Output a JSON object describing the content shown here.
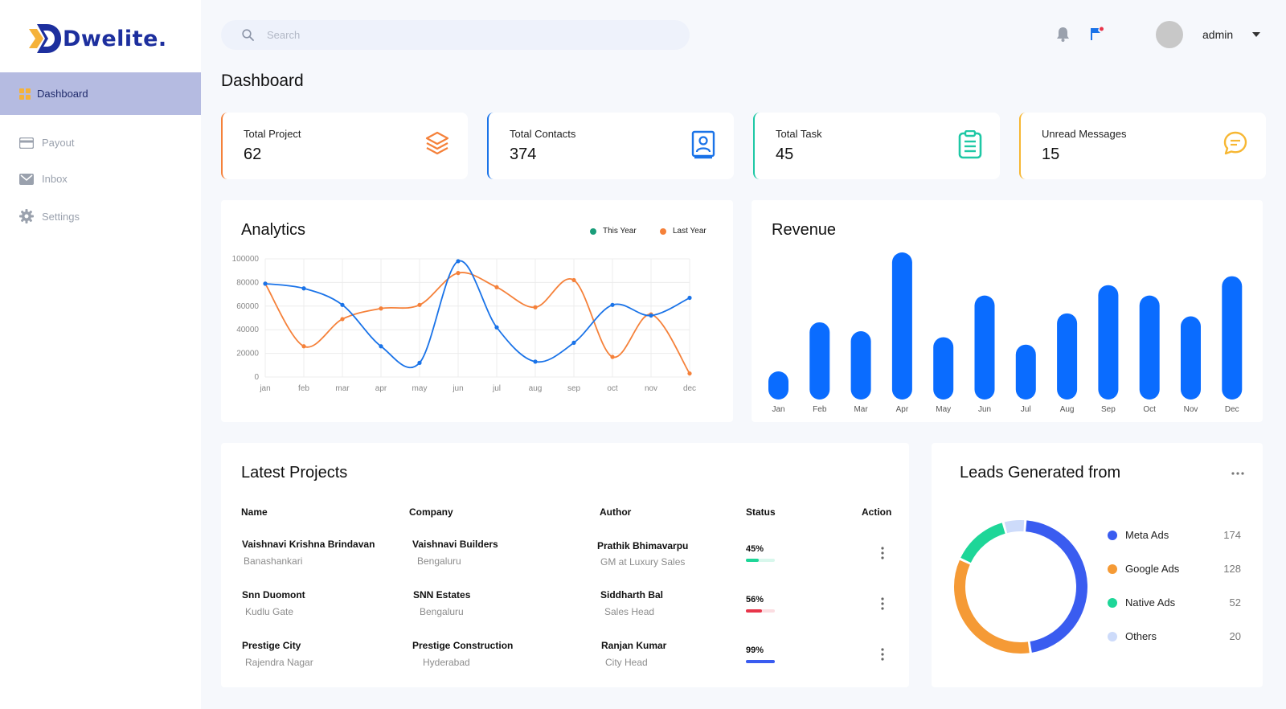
{
  "brand": {
    "name": "Dwelite."
  },
  "sidebar": {
    "active": {
      "label": "Dashboard",
      "icon": "dashboard-icon"
    },
    "items": [
      {
        "label": "Payout",
        "icon": "card-icon"
      },
      {
        "label": "Inbox",
        "icon": "mail-icon"
      },
      {
        "label": "Settings",
        "icon": "gear-icon"
      }
    ]
  },
  "header": {
    "search_placeholder": "Search",
    "user": "admin"
  },
  "page_title": "Dashboard",
  "stats": [
    {
      "title": "Total Project",
      "value": "62",
      "icon": "layers-icon",
      "color": "#f5813a"
    },
    {
      "title": "Total Contacts",
      "value": "374",
      "icon": "contact-book-icon",
      "color": "#1a73e8"
    },
    {
      "title": "Total Task",
      "value": "45",
      "icon": "clipboard-icon",
      "color": "#1ec8a5"
    },
    {
      "title": "Unread Messages",
      "value": "15",
      "icon": "chat-icon",
      "color": "#f7b733"
    }
  ],
  "analytics": {
    "title": "Analytics",
    "legend": {
      "this_year": "This Year",
      "last_year": "Last Year"
    },
    "colors": {
      "this_year": "#1a73e8",
      "last_year": "#f5813a"
    }
  },
  "revenue": {
    "title": "Revenue",
    "color": "#0a6cff"
  },
  "chart_data": [
    {
      "type": "line",
      "title": "Analytics",
      "x": [
        "jan",
        "feb",
        "mar",
        "apr",
        "may",
        "jun",
        "jul",
        "aug",
        "sep",
        "oct",
        "nov",
        "dec"
      ],
      "y_ticks": [
        "100000",
        "80000",
        "60000",
        "40000",
        "20000",
        "0"
      ],
      "ylim": [
        0,
        100000
      ],
      "series": [
        {
          "name": "This Year",
          "values": [
            79000,
            75000,
            61000,
            26000,
            12000,
            98000,
            42000,
            13000,
            29000,
            61000,
            52000,
            67000
          ]
        },
        {
          "name": "Last Year",
          "values": [
            79000,
            26000,
            49000,
            58000,
            61000,
            88000,
            76000,
            59000,
            82000,
            17000,
            53000,
            3000
          ]
        }
      ]
    },
    {
      "type": "bar",
      "title": "Revenue",
      "categories": [
        "Jan",
        "Feb",
        "Mar",
        "Apr",
        "May",
        "Jun",
        "Jul",
        "Aug",
        "Sep",
        "Oct",
        "Nov",
        "Dec"
      ],
      "values": [
        20,
        53,
        47,
        100,
        43,
        71,
        38,
        59,
        78,
        71,
        57,
        84
      ],
      "ylim": [
        0,
        100
      ]
    },
    {
      "type": "pie",
      "title": "Leads Generated from",
      "labels": [
        "Meta Ads",
        "Google Ads",
        "Native Ads",
        "Others"
      ],
      "values": [
        174,
        128,
        52,
        20
      ],
      "colors": [
        "#3a5cf0",
        "#f59a35",
        "#1ed698",
        "#cddbfa"
      ]
    }
  ],
  "projects": {
    "title": "Latest Projects",
    "headers": [
      "Name",
      "Company",
      "Author",
      "Status",
      "Action"
    ],
    "rows": [
      {
        "name": "Vaishnavi Krishna Brindavan",
        "location": "Banashankari",
        "company": "Vaishnavi Builders",
        "city": "Bengaluru",
        "author": "Prathik Bhimavarpu",
        "role": "GM at Luxury Sales",
        "status": "45%",
        "progress": 0.45,
        "color": "#1ed698",
        "track": "#d8f7ec"
      },
      {
        "name": "Snn Duomont",
        "location": "Kudlu Gate",
        "company": "SNN Estates",
        "city": "Bengaluru",
        "author": "Siddharth Bal",
        "role": "Sales Head",
        "status": "56%",
        "progress": 0.56,
        "color": "#e8354a",
        "track": "#fbdde1"
      },
      {
        "name": "Prestige City",
        "location": "Rajendra Nagar",
        "company": "Prestige Construction",
        "city": "Hyderabad",
        "author": "Ranjan Kumar",
        "role": "City Head",
        "status": "99%",
        "progress": 0.99,
        "color": "#3a5cf0",
        "track": "#dde4fd"
      }
    ]
  },
  "leads": {
    "title": "Leads Generated from",
    "items": [
      {
        "label": "Meta Ads",
        "count": "174"
      },
      {
        "label": "Google Ads",
        "count": "128"
      },
      {
        "label": "Native Ads",
        "count": "52"
      },
      {
        "label": "Others",
        "count": "20"
      }
    ]
  }
}
